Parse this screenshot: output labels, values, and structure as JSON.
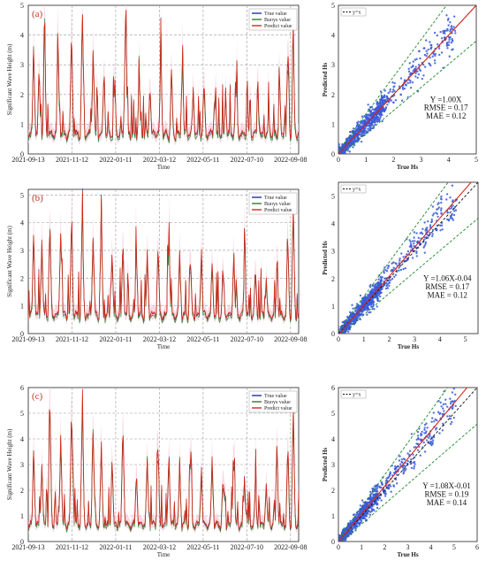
{
  "colors": {
    "true": "#1f2fb5",
    "buoy": "#2e7d32",
    "predict": "#d62718",
    "band": "#f6c9d6",
    "scatter": "#3a5bd9",
    "fit": "#d62718",
    "envelope": "#1b8a2a",
    "identity": "#111111"
  },
  "chart_data": [
    {
      "type": "line",
      "panel_label": "(a)",
      "xlabel": "Time",
      "ylabel": "Significant Wave Height (m)",
      "x_ticks": [
        "2021-09-13",
        "2021-11-12",
        "2022-01-11",
        "2022-03-12",
        "2022-05-11",
        "2022-07-10",
        "2022-09-08"
      ],
      "ylim": [
        0,
        5
      ],
      "y_ticks": [
        "0",
        "1",
        "2",
        "3",
        "4",
        "5"
      ],
      "legend": [
        "True value",
        "Buoys value",
        "Predict value"
      ],
      "grid": true,
      "peaks": [
        [
          0.02,
          3.5
        ],
        [
          0.04,
          2.9
        ],
        [
          0.06,
          4.1
        ],
        [
          0.11,
          3.7
        ],
        [
          0.16,
          4.2
        ],
        [
          0.2,
          4.8
        ],
        [
          0.24,
          3.4
        ],
        [
          0.28,
          2.8
        ],
        [
          0.32,
          2.4
        ],
        [
          0.36,
          4.7
        ],
        [
          0.41,
          2.7
        ],
        [
          0.45,
          2.2
        ],
        [
          0.49,
          3.3
        ],
        [
          0.53,
          2.8
        ],
        [
          0.57,
          3.1
        ],
        [
          0.61,
          2.2
        ],
        [
          0.65,
          2.5
        ],
        [
          0.69,
          1.9
        ],
        [
          0.73,
          1.7
        ],
        [
          0.77,
          2.3
        ],
        [
          0.81,
          1.5
        ],
        [
          0.85,
          1.9
        ],
        [
          0.89,
          1.3
        ],
        [
          0.93,
          2.2
        ],
        [
          0.96,
          3.7
        ],
        [
          0.98,
          3.3
        ]
      ]
    },
    {
      "type": "scatter",
      "legend": [
        "y=x"
      ],
      "xlabel": "True Hs",
      "ylabel": "Predicted Hs",
      "xlim": [
        0,
        5
      ],
      "ylim": [
        0,
        5
      ],
      "x_ticks": [
        "0",
        "1",
        "2",
        "3",
        "4",
        "5"
      ],
      "y_ticks": [
        "0",
        "1",
        "2",
        "3",
        "4",
        "5"
      ],
      "fit_slope": 1.0,
      "fit_intercept": 0.0,
      "stats": [
        "Y =1.00X",
        "RMSE = 0.17",
        "MAE = 0.12"
      ]
    },
    {
      "type": "line",
      "panel_label": "(b)",
      "xlabel": "Time",
      "ylabel": "Significant Wave Height (m)",
      "x_ticks": [
        "2021-09-13",
        "2021-11-12",
        "2022-01-11",
        "2022-03-12",
        "2022-05-11",
        "2022-07-10",
        "2022-09-08"
      ],
      "ylim": [
        0,
        5.2
      ],
      "y_ticks": [
        "0",
        "1",
        "2",
        "3",
        "4",
        "5"
      ],
      "legend": [
        "True value",
        "Buoys value",
        "Predict value"
      ],
      "grid": true,
      "peaks": [
        [
          0.02,
          3.6
        ],
        [
          0.05,
          3.2
        ],
        [
          0.08,
          4.1
        ],
        [
          0.12,
          3.6
        ],
        [
          0.16,
          4.0
        ],
        [
          0.2,
          4.4
        ],
        [
          0.24,
          3.5
        ],
        [
          0.27,
          4.2
        ],
        [
          0.31,
          3.1
        ],
        [
          0.35,
          3.4
        ],
        [
          0.4,
          2.8
        ],
        [
          0.44,
          3.0
        ],
        [
          0.48,
          3.1
        ],
        [
          0.52,
          3.4
        ],
        [
          0.56,
          2.9
        ],
        [
          0.6,
          2.7
        ],
        [
          0.64,
          3.0
        ],
        [
          0.68,
          2.5
        ],
        [
          0.72,
          2.4
        ],
        [
          0.76,
          2.8
        ],
        [
          0.8,
          2.5
        ],
        [
          0.84,
          2.3
        ],
        [
          0.88,
          1.9
        ],
        [
          0.92,
          2.2
        ],
        [
          0.96,
          3.4
        ],
        [
          0.98,
          4.7
        ]
      ]
    },
    {
      "type": "scatter",
      "legend": [
        "y=x"
      ],
      "xlabel": "True Hs",
      "ylabel": "Predicted Hs",
      "xlim": [
        0,
        5.5
      ],
      "ylim": [
        0,
        5.5
      ],
      "x_ticks": [
        "0",
        "1",
        "2",
        "3",
        "4",
        "5"
      ],
      "y_ticks": [
        "0",
        "1",
        "2",
        "3",
        "4",
        "5"
      ],
      "fit_slope": 1.06,
      "fit_intercept": -0.04,
      "stats": [
        "Y =1.06X-0.04",
        "RMSE = 0.17",
        "MAE = 0.12"
      ]
    },
    {
      "type": "line",
      "panel_label": "(c)",
      "xlabel": "Time",
      "ylabel": "Significant Wave Height (m)",
      "x_ticks": [
        "2021-09-13",
        "2021-11-12",
        "2022-01-11",
        "2022-03-12",
        "2022-05-11",
        "2022-07-10",
        "2022-09-08"
      ],
      "ylim": [
        0,
        6
      ],
      "y_ticks": [
        "0",
        "1",
        "2",
        "3",
        "4",
        "5",
        "6"
      ],
      "legend": [
        "True value",
        "Buoys value",
        "Predict value"
      ],
      "grid": true,
      "peaks": [
        [
          0.02,
          3.5
        ],
        [
          0.05,
          2.9
        ],
        [
          0.08,
          5.4
        ],
        [
          0.12,
          4.0
        ],
        [
          0.16,
          5.2
        ],
        [
          0.2,
          5.5
        ],
        [
          0.24,
          4.3
        ],
        [
          0.27,
          3.8
        ],
        [
          0.31,
          3.2
        ],
        [
          0.35,
          4.6
        ],
        [
          0.4,
          2.8
        ],
        [
          0.44,
          3.2
        ],
        [
          0.48,
          3.8
        ],
        [
          0.52,
          3.5
        ],
        [
          0.56,
          3.0
        ],
        [
          0.6,
          3.1
        ],
        [
          0.64,
          2.8
        ],
        [
          0.68,
          3.3
        ],
        [
          0.72,
          2.6
        ],
        [
          0.76,
          2.9
        ],
        [
          0.8,
          2.4
        ],
        [
          0.84,
          2.2
        ],
        [
          0.88,
          2.0
        ],
        [
          0.92,
          2.6
        ],
        [
          0.96,
          3.7
        ],
        [
          0.98,
          5.3
        ]
      ]
    },
    {
      "type": "scatter",
      "legend": [
        "y=x"
      ],
      "xlabel": "True Hs",
      "ylabel": "Predicted Hs",
      "xlim": [
        0,
        6
      ],
      "ylim": [
        0,
        6
      ],
      "x_ticks": [
        "0",
        "1",
        "2",
        "3",
        "4",
        "5",
        "6"
      ],
      "y_ticks": [
        "0",
        "1",
        "2",
        "3",
        "4",
        "5",
        "6"
      ],
      "fit_slope": 1.08,
      "fit_intercept": -0.01,
      "stats": [
        "Y =1.08X-0.01",
        "RMSE = 0.19",
        "MAE = 0.14"
      ]
    }
  ]
}
